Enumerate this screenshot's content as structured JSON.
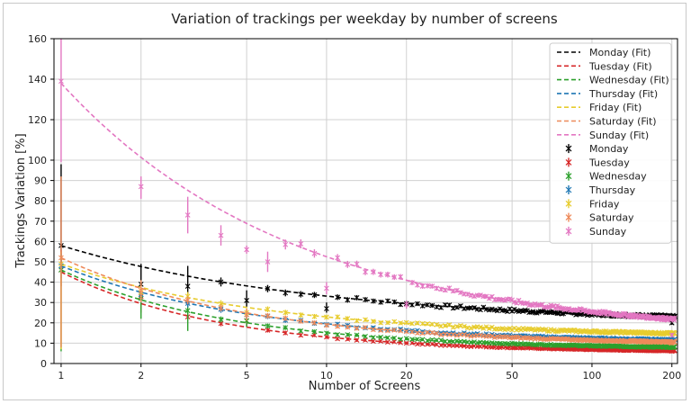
{
  "chart_data": {
    "type": "scatter",
    "title": "Variation of trackings per weekday by number of screens",
    "xlabel": "Number of Screens",
    "ylabel": "Trackings Variation [%]",
    "x_scale": "log",
    "xlim": [
      0.94,
      210
    ],
    "ylim": [
      0,
      160
    ],
    "y_scale": "piecewise: 0-100 linear (10 per tick), 100-160 compressed (20 per tick)",
    "x_ticks": [
      1,
      2,
      5,
      10,
      20,
      50,
      100,
      200
    ],
    "y_ticks": [
      0,
      10,
      20,
      30,
      40,
      50,
      60,
      70,
      80,
      90,
      100,
      120,
      140,
      160
    ],
    "grid": true,
    "legend_position": "top-right",
    "series": [
      {
        "day": "monday",
        "color": "#000000",
        "fit_name": "Monday (Fit)",
        "name": "Monday",
        "fit": {
          "a": 58,
          "b": 0.45,
          "c": 19.5
        },
        "points_sample": [
          {
            "x": 1,
            "y": 58,
            "err_lo": 12,
            "err_hi": 40
          },
          {
            "x": 2,
            "y": 39,
            "err_lo": 5,
            "err_hi": 10
          },
          {
            "x": 3,
            "y": 38,
            "err_lo": 4,
            "err_hi": 10
          },
          {
            "x": 5,
            "y": 31,
            "err_lo": 3,
            "err_hi": 5
          },
          {
            "x": 10,
            "y": 27,
            "err_lo": 2,
            "err_hi": 3
          },
          {
            "x": 200,
            "y": 20,
            "err_lo": 1,
            "err_hi": 1
          }
        ]
      },
      {
        "day": "tuesday",
        "color": "#d62728",
        "fit_name": "Tuesday (Fit)",
        "name": "Tuesday",
        "fit": {
          "a": 45,
          "b": 0.72,
          "c": 5.5
        },
        "points_sample": [
          {
            "x": 1,
            "y": 46,
            "err_lo": 8,
            "err_hi": 10
          },
          {
            "x": 2,
            "y": 33,
            "err_lo": 8,
            "err_hi": 5
          },
          {
            "x": 5,
            "y": 21,
            "err_lo": 3,
            "err_hi": 3
          },
          {
            "x": 200,
            "y": 6,
            "err_lo": 1,
            "err_hi": 1
          }
        ]
      },
      {
        "day": "wednesday",
        "color": "#2ca02c",
        "fit_name": "Wednesday (Fit)",
        "name": "Wednesday",
        "fit": {
          "a": 46,
          "b": 0.68,
          "c": 7
        },
        "points_sample": [
          {
            "x": 1,
            "y": 46,
            "err_lo": 40,
            "err_hi": 6
          },
          {
            "x": 2,
            "y": 32,
            "err_lo": 10,
            "err_hi": 5
          },
          {
            "x": 3,
            "y": 26,
            "err_lo": 10,
            "err_hi": 6
          },
          {
            "x": 5,
            "y": 21,
            "err_lo": 3,
            "err_hi": 3
          },
          {
            "x": 200,
            "y": 8,
            "err_lo": 1,
            "err_hi": 1
          }
        ]
      },
      {
        "day": "thursday",
        "color": "#1f77b4",
        "fit_name": "Thursday (Fit)",
        "name": "Thursday",
        "fit": {
          "a": 48,
          "b": 0.6,
          "c": 10
        },
        "points_sample": [
          {
            "x": 1,
            "y": 48,
            "err_lo": 6,
            "err_hi": 6
          },
          {
            "x": 2,
            "y": 34,
            "err_lo": 4,
            "err_hi": 4
          },
          {
            "x": 5,
            "y": 24,
            "err_lo": 2,
            "err_hi": 2
          },
          {
            "x": 200,
            "y": 11,
            "err_lo": 1,
            "err_hi": 1
          }
        ]
      },
      {
        "day": "friday",
        "color": "#e7cc2f",
        "fit_name": "Friday (Fit)",
        "name": "Friday",
        "fit": {
          "a": 49,
          "b": 0.56,
          "c": 13
        },
        "points_sample": [
          {
            "x": 1,
            "y": 49,
            "err_lo": 42,
            "err_hi": 6
          },
          {
            "x": 2,
            "y": 35,
            "err_lo": 4,
            "err_hi": 4
          },
          {
            "x": 5,
            "y": 25,
            "err_lo": 2,
            "err_hi": 2
          },
          {
            "x": 200,
            "y": 14,
            "err_lo": 1,
            "err_hi": 1
          }
        ]
      },
      {
        "day": "saturday",
        "color": "#ee8a5a",
        "fit_name": "Saturday (Fit)",
        "name": "Saturday",
        "fit": {
          "a": 52,
          "b": 0.62,
          "c": 9
        },
        "points_sample": [
          {
            "x": 1,
            "y": 52,
            "err_lo": 44,
            "err_hi": 40
          },
          {
            "x": 2,
            "y": 36,
            "err_lo": 6,
            "err_hi": 5
          },
          {
            "x": 5,
            "y": 24,
            "err_lo": 3,
            "err_hi": 3
          },
          {
            "x": 200,
            "y": 10,
            "err_lo": 1,
            "err_hi": 1
          }
        ]
      },
      {
        "day": "sunday",
        "color": "#e377c2",
        "fit_name": "Sunday (Fit)",
        "name": "Sunday",
        "fit": {
          "a": 138,
          "b": 0.5,
          "c": 13
        },
        "points_sample": [
          {
            "x": 1,
            "y": 139,
            "err_lo": 40,
            "err_hi": 40
          },
          {
            "x": 2,
            "y": 87,
            "err_lo": 6,
            "err_hi": 5
          },
          {
            "x": 3,
            "y": 73,
            "err_lo": 9,
            "err_hi": 9
          },
          {
            "x": 4,
            "y": 63,
            "err_lo": 5,
            "err_hi": 5
          },
          {
            "x": 5,
            "y": 56,
            "err_lo": 2,
            "err_hi": 2
          },
          {
            "x": 6,
            "y": 50,
            "err_lo": 5,
            "err_hi": 5
          },
          {
            "x": 10,
            "y": 37,
            "err_lo": 3,
            "err_hi": 3
          },
          {
            "x": 20,
            "y": 29,
            "err_lo": 2,
            "err_hi": 2
          },
          {
            "x": 200,
            "y": 14,
            "err_lo": 1,
            "err_hi": 1
          }
        ]
      }
    ]
  }
}
